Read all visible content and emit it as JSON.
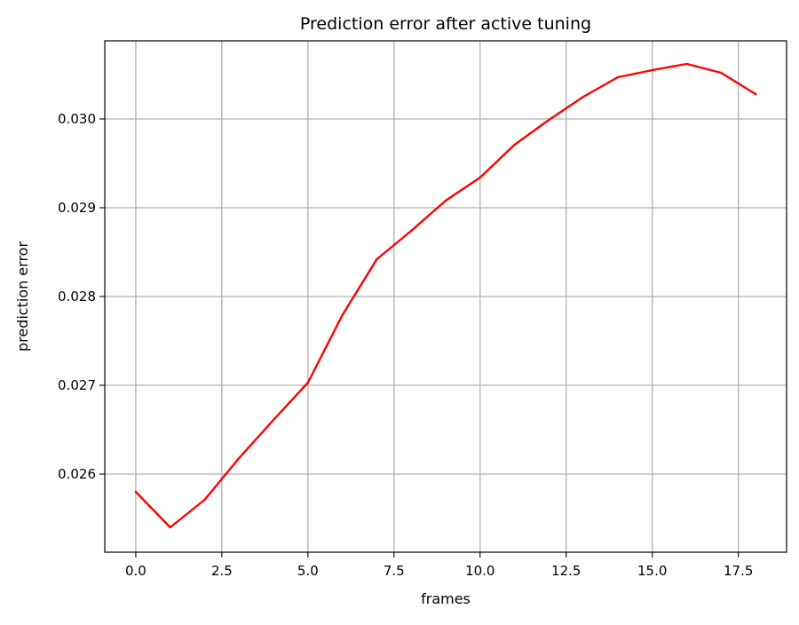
{
  "chart_data": {
    "type": "line",
    "title": "Prediction error after active tuning",
    "xlabel": "frames",
    "ylabel": "prediction error",
    "xlim": [
      -0.9,
      18.9
    ],
    "ylim": [
      0.02512,
      0.03088
    ],
    "x_ticks": [
      0.0,
      2.5,
      5.0,
      7.5,
      10.0,
      12.5,
      15.0,
      17.5
    ],
    "x_tick_labels": [
      "0.0",
      "2.5",
      "5.0",
      "7.5",
      "10.0",
      "12.5",
      "15.0",
      "17.5"
    ],
    "y_ticks": [
      0.026,
      0.027,
      0.028,
      0.029,
      0.03
    ],
    "y_tick_labels": [
      "0.026",
      "0.027",
      "0.028",
      "0.029",
      "0.030"
    ],
    "grid": true,
    "series": [
      {
        "color": "#ff0000",
        "x": [
          0,
          1,
          2,
          3,
          4,
          5,
          6,
          7,
          8,
          9,
          10,
          11,
          12,
          13,
          14,
          15,
          16,
          17,
          18
        ],
        "y": [
          0.0258,
          0.0254,
          0.02571,
          0.02618,
          0.02661,
          0.02703,
          0.02779,
          0.02842,
          0.02874,
          0.02908,
          0.02934,
          0.02971,
          0.02999,
          0.03025,
          0.03047,
          0.03055,
          0.03062,
          0.03052,
          0.03028
        ]
      }
    ]
  }
}
